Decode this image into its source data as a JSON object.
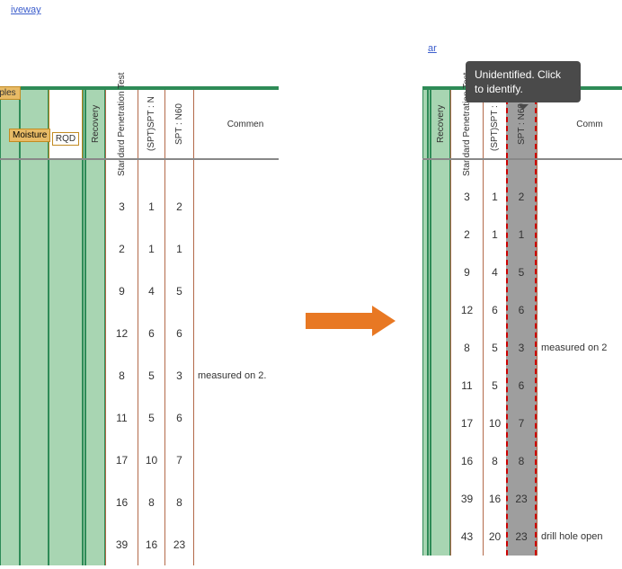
{
  "links": {
    "top_left": "iveway",
    "top_right_partial": "ar"
  },
  "tooltip": {
    "text": "Unidentified. Click to identify."
  },
  "headers": {
    "samples_partial": "mples",
    "moisture": "Moisture",
    "rqd": "RQD",
    "recovery": "Recovery",
    "spt_main": "Standard\nPenetration Test",
    "spt_mid_top": "(SPT)",
    "spt_mid": "SPT : N",
    "spt_n60": "SPT : N60",
    "comments_left": "Commen",
    "comments_right": "Comm"
  },
  "left": {
    "rows": [
      {
        "a": "3",
        "b": "1",
        "c": "2",
        "comment": ""
      },
      {
        "a": "2",
        "b": "1",
        "c": "1",
        "comment": ""
      },
      {
        "a": "9",
        "b": "4",
        "c": "5",
        "comment": ""
      },
      {
        "a": "12",
        "b": "6",
        "c": "6",
        "comment": ""
      },
      {
        "a": "8",
        "b": "5",
        "c": "3",
        "comment": "measured on 2."
      },
      {
        "a": "11",
        "b": "5",
        "c": "6",
        "comment": ""
      },
      {
        "a": "17",
        "b": "10",
        "c": "7",
        "comment": ""
      },
      {
        "a": "16",
        "b": "8",
        "c": "8",
        "comment": ""
      },
      {
        "a": "39",
        "b": "16",
        "c": "23",
        "comment": ""
      }
    ]
  },
  "right": {
    "rows": [
      {
        "a": "3",
        "b": "1",
        "c": "2",
        "comment": ""
      },
      {
        "a": "2",
        "b": "1",
        "c": "1",
        "comment": ""
      },
      {
        "a": "9",
        "b": "4",
        "c": "5",
        "comment": ""
      },
      {
        "a": "12",
        "b": "6",
        "c": "6",
        "comment": ""
      },
      {
        "a": "8",
        "b": "5",
        "c": "3",
        "comment": "measured on 2"
      },
      {
        "a": "11",
        "b": "5",
        "c": "6",
        "comment": ""
      },
      {
        "a": "17",
        "b": "10",
        "c": "7",
        "comment": ""
      },
      {
        "a": "16",
        "b": "8",
        "c": "8",
        "comment": ""
      },
      {
        "a": "39",
        "b": "16",
        "c": "23",
        "comment": ""
      },
      {
        "a": "43",
        "b": "20",
        "c": "23",
        "comment": "drill hole open"
      }
    ]
  },
  "colors": {
    "green_fill": "#a8d5b2",
    "green_line": "#2e8b57",
    "brown_line": "#b36a4a",
    "highlight_fill": "#9e9e9e",
    "highlight_border": "#c00000",
    "arrow": "#e87823",
    "tooltip_bg": "#4a4a4a",
    "badge_bg": "#e8bb66",
    "badge_border": "#c28b22",
    "link": "#3b5dcc"
  }
}
